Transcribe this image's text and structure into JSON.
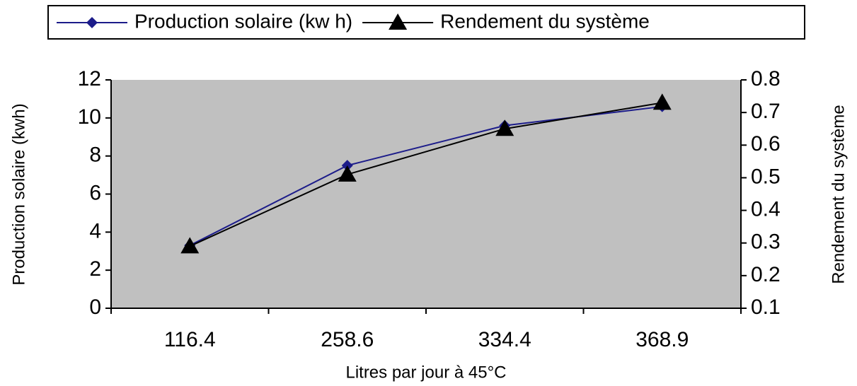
{
  "chart_data": {
    "type": "line",
    "x_label": "Litres par jour à 45°C",
    "y_label": "Production solaire (kwh)",
    "y2_label": "Rendement du système",
    "categories": [
      "116.4",
      "258.6",
      "334.4",
      "368.9"
    ],
    "series": [
      {
        "name": "Production solaire (kw h)",
        "color": "#1c1c8a",
        "marker": "diamond",
        "values": [
          3.3,
          7.5,
          9.6,
          10.6
        ]
      },
      {
        "name": "Rendement du système",
        "color": "#000000",
        "marker": "triangle",
        "axis": "y2",
        "values": [
          0.29,
          0.51,
          0.65,
          0.73
        ]
      }
    ],
    "ylim": [
      0,
      12
    ],
    "yticks": [
      0,
      2,
      4,
      6,
      8,
      10,
      12
    ],
    "y2lim": [
      0.1,
      0.8
    ],
    "y2ticks": [
      0.1,
      0.2,
      0.3,
      0.4,
      0.5,
      0.6,
      0.7,
      0.8
    ],
    "grid": false,
    "legend": "top",
    "plot_background": "#c0c0c0"
  }
}
